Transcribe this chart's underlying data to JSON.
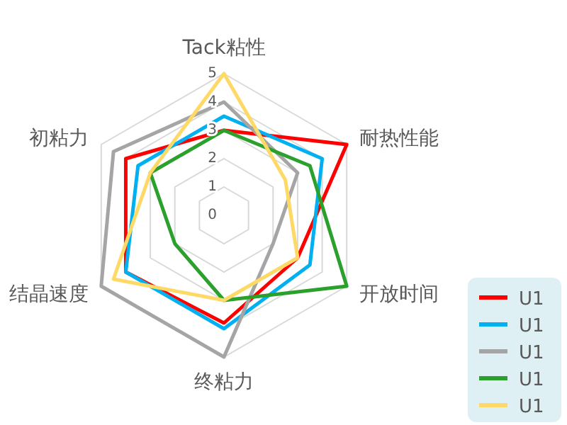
{
  "chart_data": {
    "type": "radar",
    "categories": [
      "Tack粘性",
      "耐热性能",
      "开放时间",
      "终粘力",
      "结晶速度",
      "初粘力"
    ],
    "ylim": [
      0,
      5
    ],
    "yticks": [
      0,
      1,
      2,
      3,
      4,
      5
    ],
    "grid": true,
    "legend": "right",
    "marker": "none",
    "series": [
      {
        "name": "U1",
        "color": "#ff0000",
        "values": [
          3,
          5,
          3,
          3.8,
          4,
          4
        ]
      },
      {
        "name": "U1",
        "color": "#00b0f0",
        "values": [
          3.5,
          4,
          3.5,
          4,
          4,
          3.5
        ]
      },
      {
        "name": "U1",
        "color": "#a5a5a5",
        "values": [
          4,
          3,
          2,
          5,
          5,
          4.5
        ]
      },
      {
        "name": "U1",
        "color": "#2ca02c",
        "values": [
          3,
          3.5,
          5,
          3,
          2,
          3
        ]
      },
      {
        "name": "U1",
        "color": "#ffd966",
        "values": [
          5,
          2.5,
          3,
          3,
          4.5,
          3
        ]
      }
    ]
  }
}
